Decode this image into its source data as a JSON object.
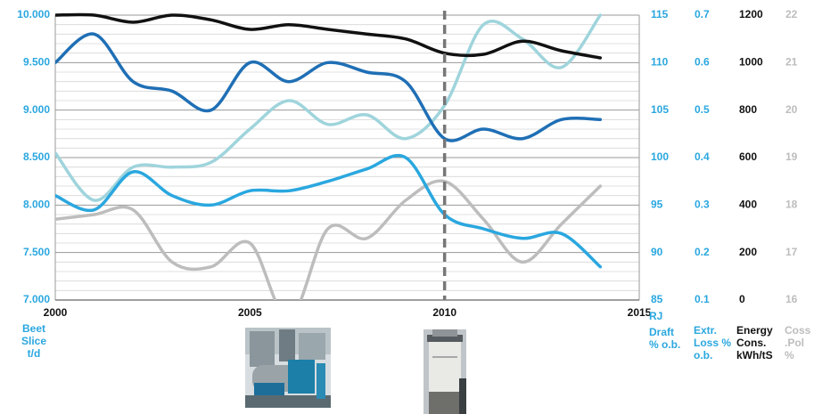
{
  "colors": {
    "beet_slice": "#1f6fb5",
    "energy": "#111111",
    "extr_loss": "#9fd4dc",
    "draft": "#2aa7df",
    "coss_pol": "#bdbdbd",
    "grid_major": "#999999",
    "grid_minor": "#d6d6d6",
    "marker": "#777777"
  },
  "axis_titles": {
    "beet_slice": "Beet Slice t/d",
    "draft_prefix": "RJ",
    "draft": "Draft % o.b.",
    "extr_loss": "Extr. Loss % o.b.",
    "energy": "Energy Cons. kWh/tS",
    "coss_pol": "Coss .Pol %"
  },
  "photos": [
    {
      "name": "diffuser-plant-photo",
      "icon": "industrial-equipment-photo"
    },
    {
      "name": "pulp-dryer-tower-photo",
      "icon": "tower-photo"
    }
  ],
  "chart_data": {
    "type": "line",
    "xlim": [
      2000,
      2015
    ],
    "x_ticks": [
      "2000",
      "2005",
      "2010",
      "2015"
    ],
    "vertical_marker_x": 2010,
    "grid": true,
    "axes": {
      "beet_slice": {
        "ylim": [
          7000,
          10000
        ],
        "ticks": [
          "7.000",
          "7.500",
          "8.000",
          "8.500",
          "9.000",
          "9.500",
          "10.000"
        ]
      },
      "draft": {
        "ylim": [
          85,
          115
        ],
        "ticks": [
          "85",
          "90",
          "95",
          "100",
          "105",
          "110",
          "115"
        ]
      },
      "extr_loss": {
        "ylim": [
          0.1,
          0.7
        ],
        "ticks": [
          "0.1",
          "0.2",
          "0.3",
          "0.4",
          "0.5",
          "0.6",
          "0.7"
        ]
      },
      "energy": {
        "ylim": [
          0,
          1200
        ],
        "ticks": [
          "0",
          "200",
          "400",
          "600",
          "800",
          "1000",
          "1200"
        ]
      },
      "coss_pol": {
        "ylim": [
          16,
          22
        ],
        "ticks": [
          "16",
          "17",
          "18",
          "19",
          "20",
          "21",
          "22"
        ]
      }
    },
    "series": [
      {
        "key": "coss_pol",
        "axis": "coss_pol",
        "x": [
          2000,
          2001,
          2002,
          2003,
          2004,
          2005,
          2006,
          2007,
          2008,
          2009,
          2010,
          2011,
          2012,
          2013,
          2014
        ],
        "y": [
          17.7,
          17.8,
          17.9,
          16.8,
          16.7,
          17.2,
          15.6,
          17.5,
          17.3,
          18.1,
          18.5,
          17.7,
          16.8,
          17.6,
          18.4
        ]
      },
      {
        "key": "extr_loss",
        "axis": "extr_loss",
        "x": [
          2000,
          2001,
          2002,
          2003,
          2004,
          2005,
          2006,
          2007,
          2008,
          2009,
          2010,
          2011,
          2012,
          2013,
          2014
        ],
        "y": [
          0.41,
          0.31,
          0.38,
          0.38,
          0.39,
          0.46,
          0.52,
          0.47,
          0.49,
          0.44,
          0.51,
          0.68,
          0.65,
          0.59,
          0.7
        ]
      },
      {
        "key": "draft",
        "axis": "draft",
        "x": [
          2000,
          2001,
          2002,
          2003,
          2004,
          2005,
          2006,
          2007,
          2008,
          2009,
          2010,
          2011,
          2012,
          2013,
          2014
        ],
        "y": [
          96,
          94.5,
          98.5,
          96,
          95,
          96.5,
          96.5,
          97.5,
          98.8,
          100,
          94,
          92.5,
          91.5,
          92,
          88.5
        ]
      },
      {
        "key": "beet_slice",
        "axis": "beet_slice",
        "x": [
          2000,
          2001,
          2002,
          2003,
          2004,
          2005,
          2006,
          2007,
          2008,
          2009,
          2010,
          2011,
          2012,
          2013,
          2014
        ],
        "y": [
          9500,
          9800,
          9300,
          9200,
          9000,
          9500,
          9300,
          9500,
          9400,
          9300,
          8700,
          8800,
          8700,
          8900,
          8900
        ]
      },
      {
        "key": "energy",
        "axis": "energy",
        "x": [
          2000,
          2001,
          2002,
          2003,
          2004,
          2005,
          2006,
          2007,
          2008,
          2009,
          2010,
          2011,
          2012,
          2013,
          2014
        ],
        "y": [
          1200,
          1200,
          1170,
          1200,
          1180,
          1140,
          1160,
          1140,
          1120,
          1100,
          1040,
          1035,
          1090,
          1050,
          1020
        ]
      }
    ]
  }
}
